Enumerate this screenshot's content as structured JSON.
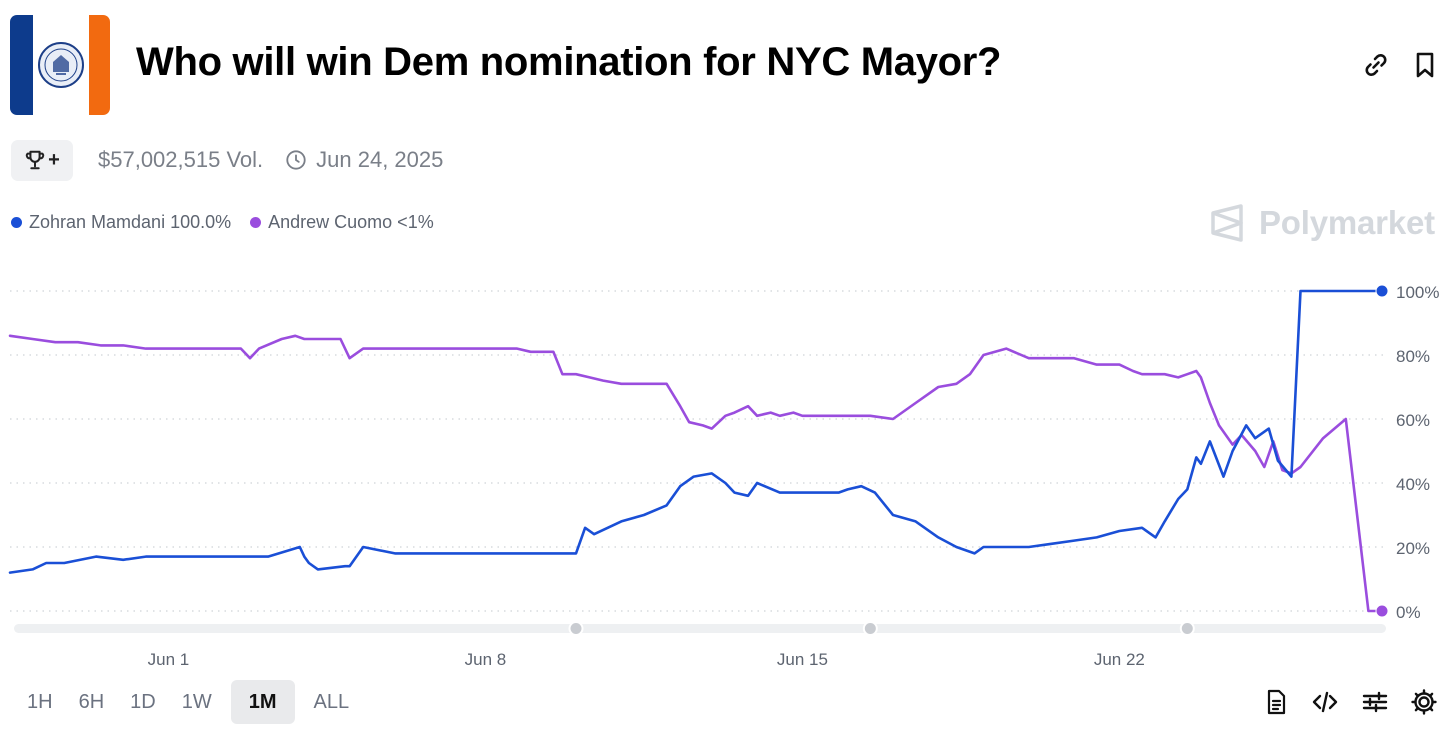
{
  "header": {
    "title": "Who will win Dem nomination for NYC Mayor?",
    "link_icon": "link-icon",
    "bookmark_icon": "bookmark-icon"
  },
  "meta": {
    "trophy_plus": "+",
    "volume": "$57,002,515 Vol.",
    "end_date": "Jun 24, 2025"
  },
  "brand": {
    "name": "Polymarket"
  },
  "chart_data": {
    "type": "line",
    "title": "Who will win Dem nomination for NYC Mayor?",
    "xlabel": "",
    "ylabel": "",
    "ylim": [
      0,
      100
    ],
    "yticks": [
      "100%",
      "80%",
      "60%",
      "40%",
      "20%",
      "0%"
    ],
    "ytick_values": [
      100,
      80,
      60,
      40,
      20,
      0
    ],
    "x_domain": [
      "May 29",
      "Jun 28"
    ],
    "x_range_days": [
      -2.5,
      27.8
    ],
    "xtick_labels": [
      "Jun 1",
      "Jun 8",
      "Jun 15",
      "Jun 22"
    ],
    "xtick_days": [
      1,
      8,
      15,
      22
    ],
    "slider_handle_days": [
      10,
      16.5,
      23.5
    ],
    "grid": true,
    "legend_position": "top-left",
    "series": [
      {
        "name": "Zohran Mamdani",
        "legend_label": "Zohran Mamdani 100.0%",
        "color": "#1a4fd6",
        "x": [
          -2.5,
          -2.0,
          -1.7,
          -1.3,
          -0.6,
          0.0,
          0.5,
          1.0,
          1.4,
          2.0,
          2.6,
          3.2,
          3.9,
          4.0,
          4.1,
          4.3,
          4.9,
          5.0,
          5.3,
          6.0,
          6.5,
          7.0,
          7.5,
          8.0,
          8.8,
          9.5,
          10.0,
          10.2,
          10.4,
          10.7,
          11.0,
          11.5,
          12.0,
          12.3,
          12.6,
          13.0,
          13.3,
          13.5,
          13.8,
          14.0,
          14.5,
          15.0,
          15.5,
          15.8,
          16.0,
          16.3,
          16.6,
          17.0,
          17.5,
          18.0,
          18.4,
          18.8,
          19.0,
          19.5,
          20.0,
          20.5,
          21.0,
          21.5,
          22.0,
          22.5,
          22.8,
          23.0,
          23.3,
          23.5,
          23.7,
          23.8,
          24.0,
          24.3,
          24.5,
          24.8,
          25.0,
          25.3,
          25.5,
          25.8,
          26.0,
          26.2,
          26.4,
          26.7,
          27.0,
          27.3,
          27.5,
          27.8
        ],
        "y": [
          12,
          13,
          15,
          15,
          17,
          16,
          17,
          17,
          17,
          17,
          17,
          17,
          20,
          17,
          15,
          13,
          14,
          14,
          20,
          18,
          18,
          18,
          18,
          18,
          18,
          18,
          18,
          26,
          24,
          26,
          28,
          30,
          33,
          39,
          42,
          43,
          40,
          37,
          36,
          40,
          37,
          37,
          37,
          37,
          38,
          39,
          37,
          30,
          28,
          23,
          20,
          18,
          20,
          20,
          20,
          21,
          22,
          23,
          25,
          26,
          23,
          28,
          35,
          38,
          48,
          46,
          53,
          42,
          50,
          58,
          54,
          57,
          47,
          42,
          100,
          100,
          100,
          100,
          100,
          100,
          100,
          100
        ],
        "end_value": 100
      },
      {
        "name": "Andrew Cuomo",
        "legend_label": "Andrew Cuomo <1%",
        "color": "#9a4dde",
        "x": [
          -2.5,
          -2.0,
          -1.5,
          -1.0,
          -0.5,
          0.0,
          0.5,
          1.0,
          1.5,
          2.0,
          2.6,
          2.8,
          3.0,
          3.5,
          3.8,
          4.0,
          4.3,
          4.8,
          5.0,
          5.3,
          6.0,
          6.5,
          7.0,
          7.5,
          8.0,
          8.7,
          9.0,
          9.5,
          9.7,
          10.0,
          10.3,
          10.6,
          11.0,
          11.5,
          12.0,
          12.3,
          12.5,
          12.8,
          13.0,
          13.3,
          13.5,
          13.8,
          14.0,
          14.3,
          14.5,
          14.8,
          15.0,
          15.3,
          15.7,
          16.0,
          16.5,
          17.0,
          17.5,
          18.0,
          18.4,
          18.7,
          19.0,
          19.5,
          20.0,
          20.5,
          21.0,
          21.5,
          22.0,
          22.3,
          22.5,
          22.8,
          23.0,
          23.3,
          23.5,
          23.7,
          23.8,
          24.0,
          24.2,
          24.5,
          24.7,
          25.0,
          25.2,
          25.4,
          25.6,
          25.8,
          26.0,
          26.5,
          27.0,
          27.5,
          27.8
        ],
        "y": [
          86,
          85,
          84,
          84,
          83,
          83,
          82,
          82,
          82,
          82,
          82,
          79,
          82,
          85,
          86,
          85,
          85,
          85,
          79,
          82,
          82,
          82,
          82,
          82,
          82,
          82,
          81,
          81,
          74,
          74,
          73,
          72,
          71,
          71,
          71,
          64,
          59,
          58,
          57,
          61,
          62,
          64,
          61,
          62,
          61,
          62,
          61,
          61,
          61,
          61,
          61,
          60,
          65,
          70,
          71,
          74,
          80,
          82,
          79,
          79,
          79,
          77,
          77,
          75,
          74,
          74,
          74,
          73,
          74,
          75,
          73,
          65,
          58,
          52,
          55,
          50,
          45,
          53,
          44,
          43,
          45,
          54,
          60,
          0,
          0
        ],
        "end_value": 0
      }
    ]
  },
  "ranges": [
    {
      "label": "1H",
      "active": false
    },
    {
      "label": "6H",
      "active": false
    },
    {
      "label": "1D",
      "active": false
    },
    {
      "label": "1W",
      "active": false
    },
    {
      "label": "1M",
      "active": true
    },
    {
      "label": "ALL",
      "active": false
    }
  ],
  "tools": [
    "document-icon",
    "code-embed-icon",
    "sliders-icon",
    "settings-gear-icon"
  ]
}
